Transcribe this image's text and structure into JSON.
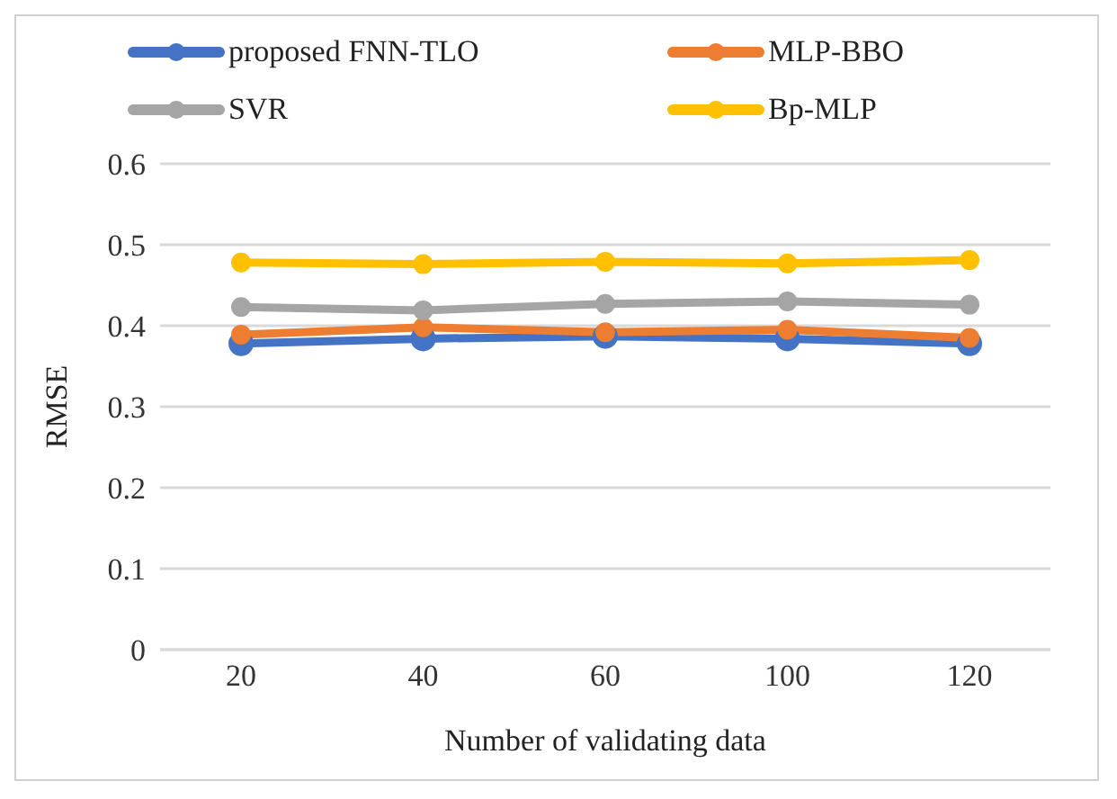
{
  "chart_data": {
    "type": "line",
    "xlabel": "Number of validating data",
    "ylabel": "RMSE",
    "categories": [
      "20",
      "40",
      "60",
      "100",
      "120"
    ],
    "series": [
      {
        "name": "proposed FNN-TLO",
        "color": "#4472c4",
        "values": [
          0.378,
          0.384,
          0.387,
          0.384,
          0.378
        ]
      },
      {
        "name": "MLP-BBO",
        "color": "#ed7d31",
        "values": [
          0.389,
          0.398,
          0.392,
          0.395,
          0.385
        ]
      },
      {
        "name": "SVR",
        "color": "#a5a5a5",
        "values": [
          0.423,
          0.419,
          0.427,
          0.43,
          0.426
        ]
      },
      {
        "name": "Bp-MLP",
        "color": "#ffc000",
        "values": [
          0.478,
          0.476,
          0.479,
          0.477,
          0.481
        ]
      }
    ],
    "ylim": [
      0,
      0.6
    ],
    "yticks": [
      0,
      0.1,
      0.2,
      0.3,
      0.4,
      0.5,
      0.6
    ],
    "grid": "y",
    "legend": "top",
    "marker": "circle",
    "line_style": "solid"
  }
}
